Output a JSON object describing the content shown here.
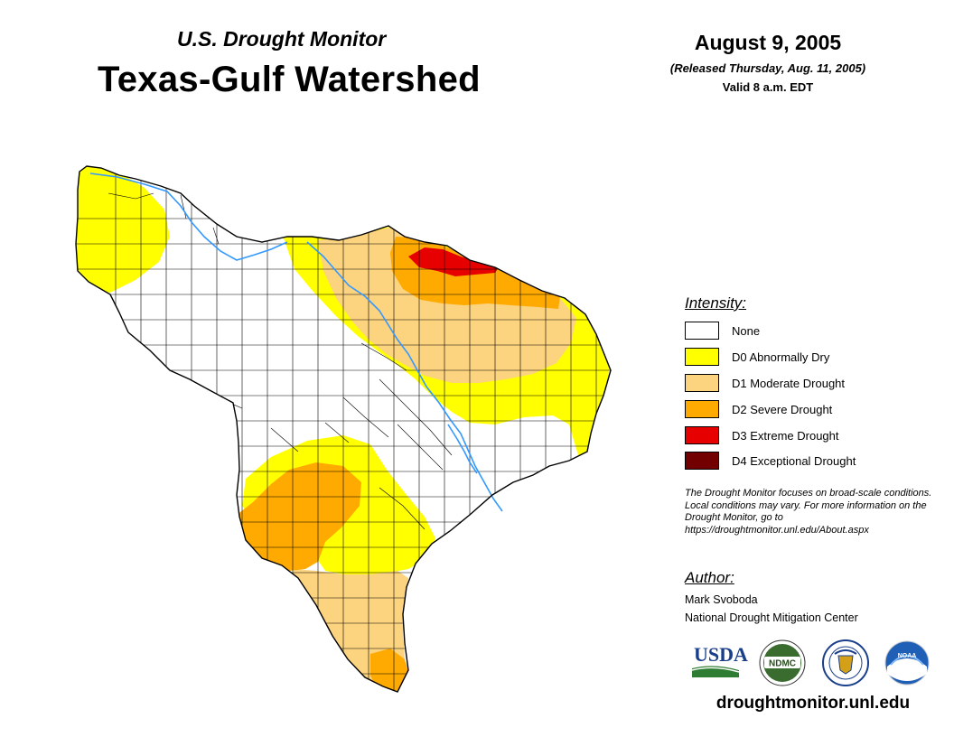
{
  "header": {
    "subtitle": "U.S. Drought Monitor",
    "title": "Texas-Gulf Watershed",
    "date": "August 9, 2005",
    "released": "(Released Thursday, Aug. 11, 2005)",
    "valid": "Valid 8 a.m. EDT"
  },
  "legend": {
    "title": "Intensity:",
    "items": [
      {
        "label": "None",
        "color": "#ffffff"
      },
      {
        "label": "D0 Abnormally Dry",
        "color": "#ffff00"
      },
      {
        "label": "D1 Moderate Drought",
        "color": "#fcd37f"
      },
      {
        "label": "D2 Severe Drought",
        "color": "#ffaa00"
      },
      {
        "label": "D3 Extreme Drought",
        "color": "#e60000"
      },
      {
        "label": "D4 Exceptional Drought",
        "color": "#730000"
      }
    ]
  },
  "note": "The Drought Monitor focuses on broad-scale conditions. Local conditions may vary. For more information on the Drought Monitor, go to https://droughtmonitor.unl.edu/About.aspx",
  "author": {
    "title": "Author:",
    "name": "Mark Svoboda",
    "org": "National Drought Mitigation Center"
  },
  "logos": {
    "usda": "USDA",
    "ndmc": "NDMC",
    "noaa": "NOAA"
  },
  "website": "droughtmonitor.unl.edu",
  "colors": {
    "river": "#3399ff",
    "county_line": "#000000"
  }
}
